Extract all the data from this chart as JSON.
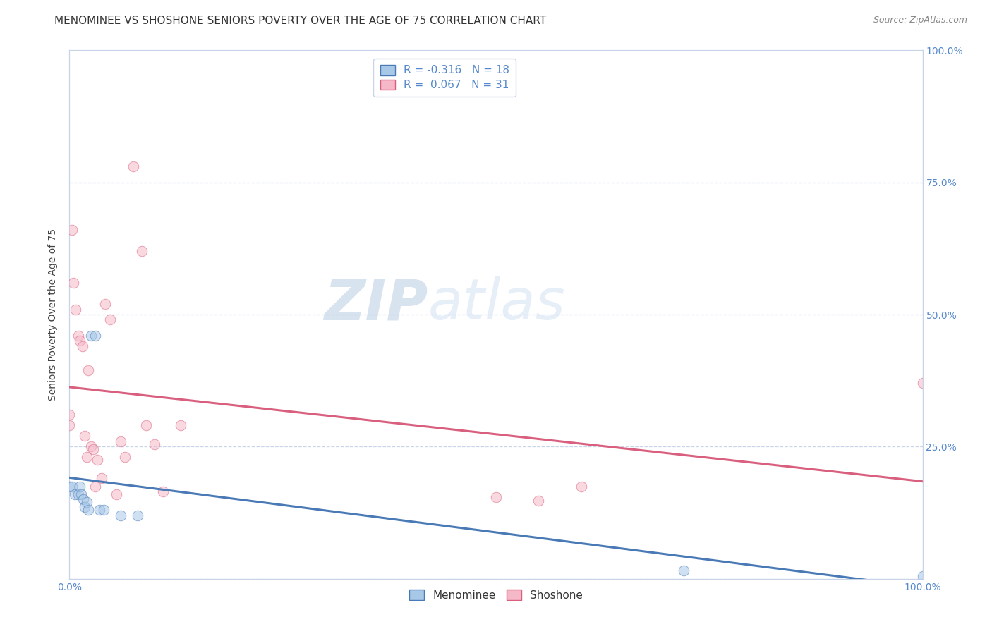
{
  "title": "MENOMINEE VS SHOSHONE SENIORS POVERTY OVER THE AGE OF 75 CORRELATION CHART",
  "source": "Source: ZipAtlas.com",
  "ylabel": "Seniors Poverty Over the Age of 75",
  "watermark_zip": "ZIP",
  "watermark_atlas": "atlas",
  "legend_label_1": "Menominee",
  "legend_label_2": "Shoshone",
  "r1": -0.316,
  "n1": 18,
  "r2": 0.067,
  "n2": 31,
  "color1": "#a8c8e8",
  "color2": "#f5b8c8",
  "line_color1": "#4a7ab5",
  "line_color2": "#d95f7f",
  "menominee_x": [
    0.0,
    0.003,
    0.006,
    0.01,
    0.012,
    0.014,
    0.016,
    0.018,
    0.02,
    0.022,
    0.025,
    0.03,
    0.035,
    0.04,
    0.06,
    0.08,
    0.72,
    1.0
  ],
  "menominee_y": [
    0.175,
    0.175,
    0.16,
    0.16,
    0.175,
    0.16,
    0.15,
    0.135,
    0.145,
    0.13,
    0.46,
    0.46,
    0.13,
    0.13,
    0.12,
    0.12,
    0.015,
    0.005
  ],
  "shoshone_x": [
    0.0,
    0.0,
    0.003,
    0.005,
    0.007,
    0.01,
    0.012,
    0.015,
    0.018,
    0.02,
    0.022,
    0.025,
    0.028,
    0.03,
    0.033,
    0.038,
    0.042,
    0.048,
    0.055,
    0.06,
    0.065,
    0.075,
    0.085,
    0.09,
    0.1,
    0.11,
    0.13,
    0.5,
    0.55,
    0.6,
    1.0
  ],
  "shoshone_y": [
    0.29,
    0.31,
    0.66,
    0.56,
    0.51,
    0.46,
    0.45,
    0.44,
    0.27,
    0.23,
    0.395,
    0.25,
    0.245,
    0.175,
    0.225,
    0.19,
    0.52,
    0.49,
    0.16,
    0.26,
    0.23,
    0.78,
    0.62,
    0.29,
    0.255,
    0.165,
    0.29,
    0.155,
    0.148,
    0.175,
    0.37
  ],
  "xlim": [
    0.0,
    1.0
  ],
  "ylim": [
    0.0,
    1.0
  ],
  "x_ticks": [
    0.0,
    0.25,
    0.5,
    0.75,
    1.0
  ],
  "x_tick_labels": [
    "0.0%",
    "",
    "",
    "",
    "100.0%"
  ],
  "y_ticks": [
    0.0,
    0.25,
    0.5,
    0.75,
    1.0
  ],
  "y_right_labels": [
    "",
    "25.0%",
    "50.0%",
    "75.0%",
    "100.0%"
  ],
  "marker_size": 110,
  "alpha": 0.55,
  "background_color": "#ffffff",
  "grid_color": "#c8d4e8",
  "title_fontsize": 11,
  "axis_label_fontsize": 10,
  "tick_label_color": "#5588cc",
  "legend_fontsize": 11,
  "source_fontsize": 9
}
